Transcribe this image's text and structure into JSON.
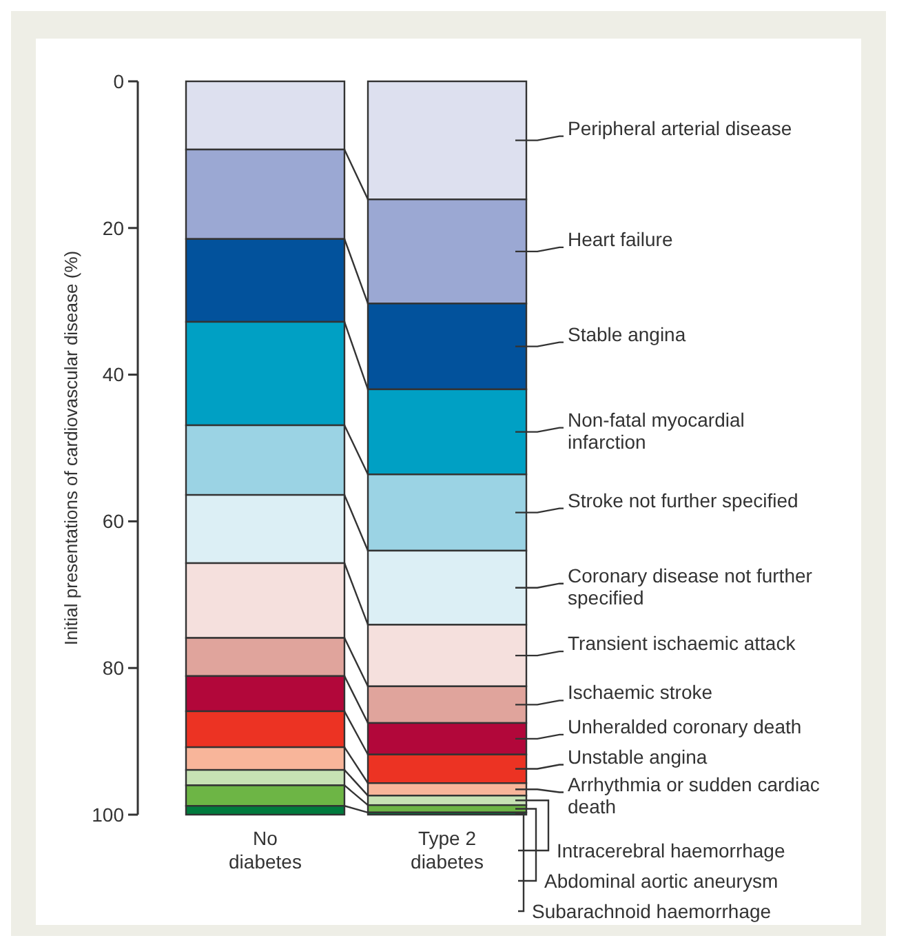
{
  "chart_data": {
    "type": "bar",
    "stacked": true,
    "ylabel": "Initial presentations of cardiovascular disease (%)",
    "categories": [
      "No diabetes",
      "Type 2 diabetes"
    ],
    "ylim": [
      100,
      0
    ],
    "yticks": [
      0,
      20,
      40,
      60,
      80,
      100
    ],
    "grid": false,
    "legend": "right",
    "series": [
      {
        "name": "Peripheral arterial disease",
        "color": "#dde0ef",
        "values": [
          9.3,
          16.1
        ]
      },
      {
        "name": "Heart failure",
        "color": "#9ba8d3",
        "values": [
          12.2,
          14.2
        ]
      },
      {
        "name": "Stable angina",
        "color": "#02529c",
        "values": [
          11.3,
          11.7
        ]
      },
      {
        "name": "Non-fatal myocardial infarction",
        "color": "#00a0c4",
        "values": [
          14.1,
          11.6
        ]
      },
      {
        "name": "Stroke not further specified",
        "color": "#9bd3e4",
        "values": [
          9.5,
          10.4
        ]
      },
      {
        "name": "Coronary disease not further specified",
        "color": "#dceff5",
        "values": [
          9.3,
          10.1
        ]
      },
      {
        "name": "Transient ischaemic attack",
        "color": "#f5e0dd",
        "values": [
          10.2,
          8.4
        ]
      },
      {
        "name": "Ischaemic stroke",
        "color": "#e0a49c",
        "values": [
          5.2,
          5.0
        ]
      },
      {
        "name": "Unheralded coronary death",
        "color": "#b2073a",
        "values": [
          4.8,
          4.3
        ]
      },
      {
        "name": "Unstable angina",
        "color": "#ec3323",
        "values": [
          4.9,
          3.9
        ]
      },
      {
        "name": "Arrhythmia or sudden cardiac death",
        "color": "#f8b59a",
        "values": [
          3.1,
          1.7
        ]
      },
      {
        "name": "Intracerebral haemorrhage",
        "color": "#c7e2b4",
        "values": [
          2.1,
          1.3
        ]
      },
      {
        "name": "Abdominal aortic aneurysm",
        "color": "#6db545",
        "values": [
          2.8,
          1.0
        ]
      },
      {
        "name": "Subarachnoid haemorrhage",
        "color": "#007a3d",
        "values": [
          1.2,
          0.3
        ]
      }
    ]
  }
}
